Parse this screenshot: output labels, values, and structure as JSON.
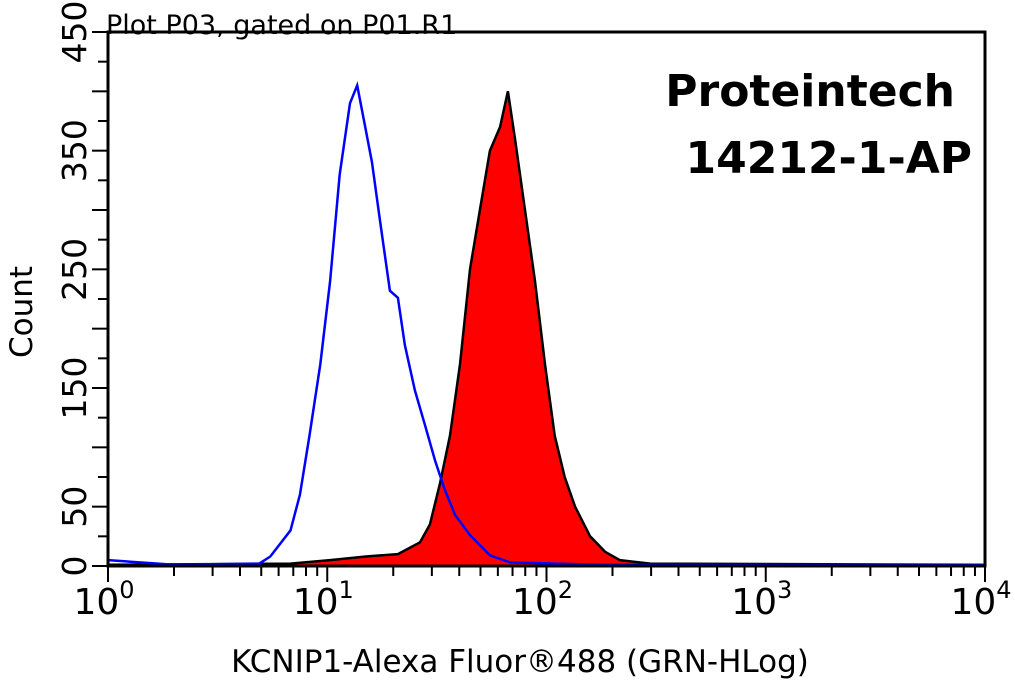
{
  "chart_data": {
    "type": "area",
    "title": "Plot P03, gated on P01.R1",
    "xlabel": "KCNIP1-Alexa Fluor®488 (GRN-HLog)",
    "ylabel": "Count",
    "x_scale": "log",
    "xlim": [
      1,
      10000
    ],
    "ylim": [
      0,
      450
    ],
    "x_tick_labels": [
      {
        "base": "10",
        "exp": "0",
        "value": 1
      },
      {
        "base": "10",
        "exp": "1",
        "value": 10
      },
      {
        "base": "10",
        "exp": "2",
        "value": 100
      },
      {
        "base": "10",
        "exp": "3",
        "value": 1000
      },
      {
        "base": "10",
        "exp": "4",
        "value": 10000
      }
    ],
    "y_tick_labels": [
      "0",
      "50",
      "150",
      "250",
      "350",
      "450"
    ],
    "annotation": [
      "Proteintech",
      "14212-1-AP"
    ],
    "grid": false,
    "series": [
      {
        "color": "#0000ff",
        "style": "outline",
        "x": [
          1,
          2,
          4.9,
          5.5,
          6.8,
          7.5,
          8.3,
          9.3,
          10.3,
          11.4,
          12.7,
          13.7,
          14.9,
          16.0,
          17.4,
          19.3,
          21.0,
          22.6,
          25.1,
          27.9,
          31.0,
          34.4,
          38.3,
          44.8,
          55.2,
          68.2,
          175,
          10000
        ],
        "y": [
          5,
          1,
          2,
          8,
          30,
          60,
          110,
          170,
          240,
          330,
          390,
          405,
          370,
          340,
          291,
          232,
          226,
          186,
          148,
          119,
          89,
          64,
          43,
          26,
          9,
          3,
          1,
          1
        ]
      },
      {
        "color": "#ff0000",
        "outline_color": "#000000",
        "style": "filled",
        "x": [
          1,
          6.8,
          10.3,
          15,
          21,
          26.5,
          29.4,
          32.7,
          36.3,
          40.3,
          44.8,
          49.7,
          55.2,
          61.4,
          66.7,
          71.8,
          79.8,
          88.6,
          98.4,
          109,
          121,
          135,
          158,
          185,
          216,
          297,
          10000
        ],
        "y": [
          1,
          2,
          5,
          8,
          10,
          20,
          35,
          70,
          110,
          170,
          250,
          300,
          350,
          370,
          400,
          360,
          300,
          240,
          170,
          110,
          75,
          50,
          25,
          12,
          5,
          2,
          1
        ]
      }
    ]
  }
}
